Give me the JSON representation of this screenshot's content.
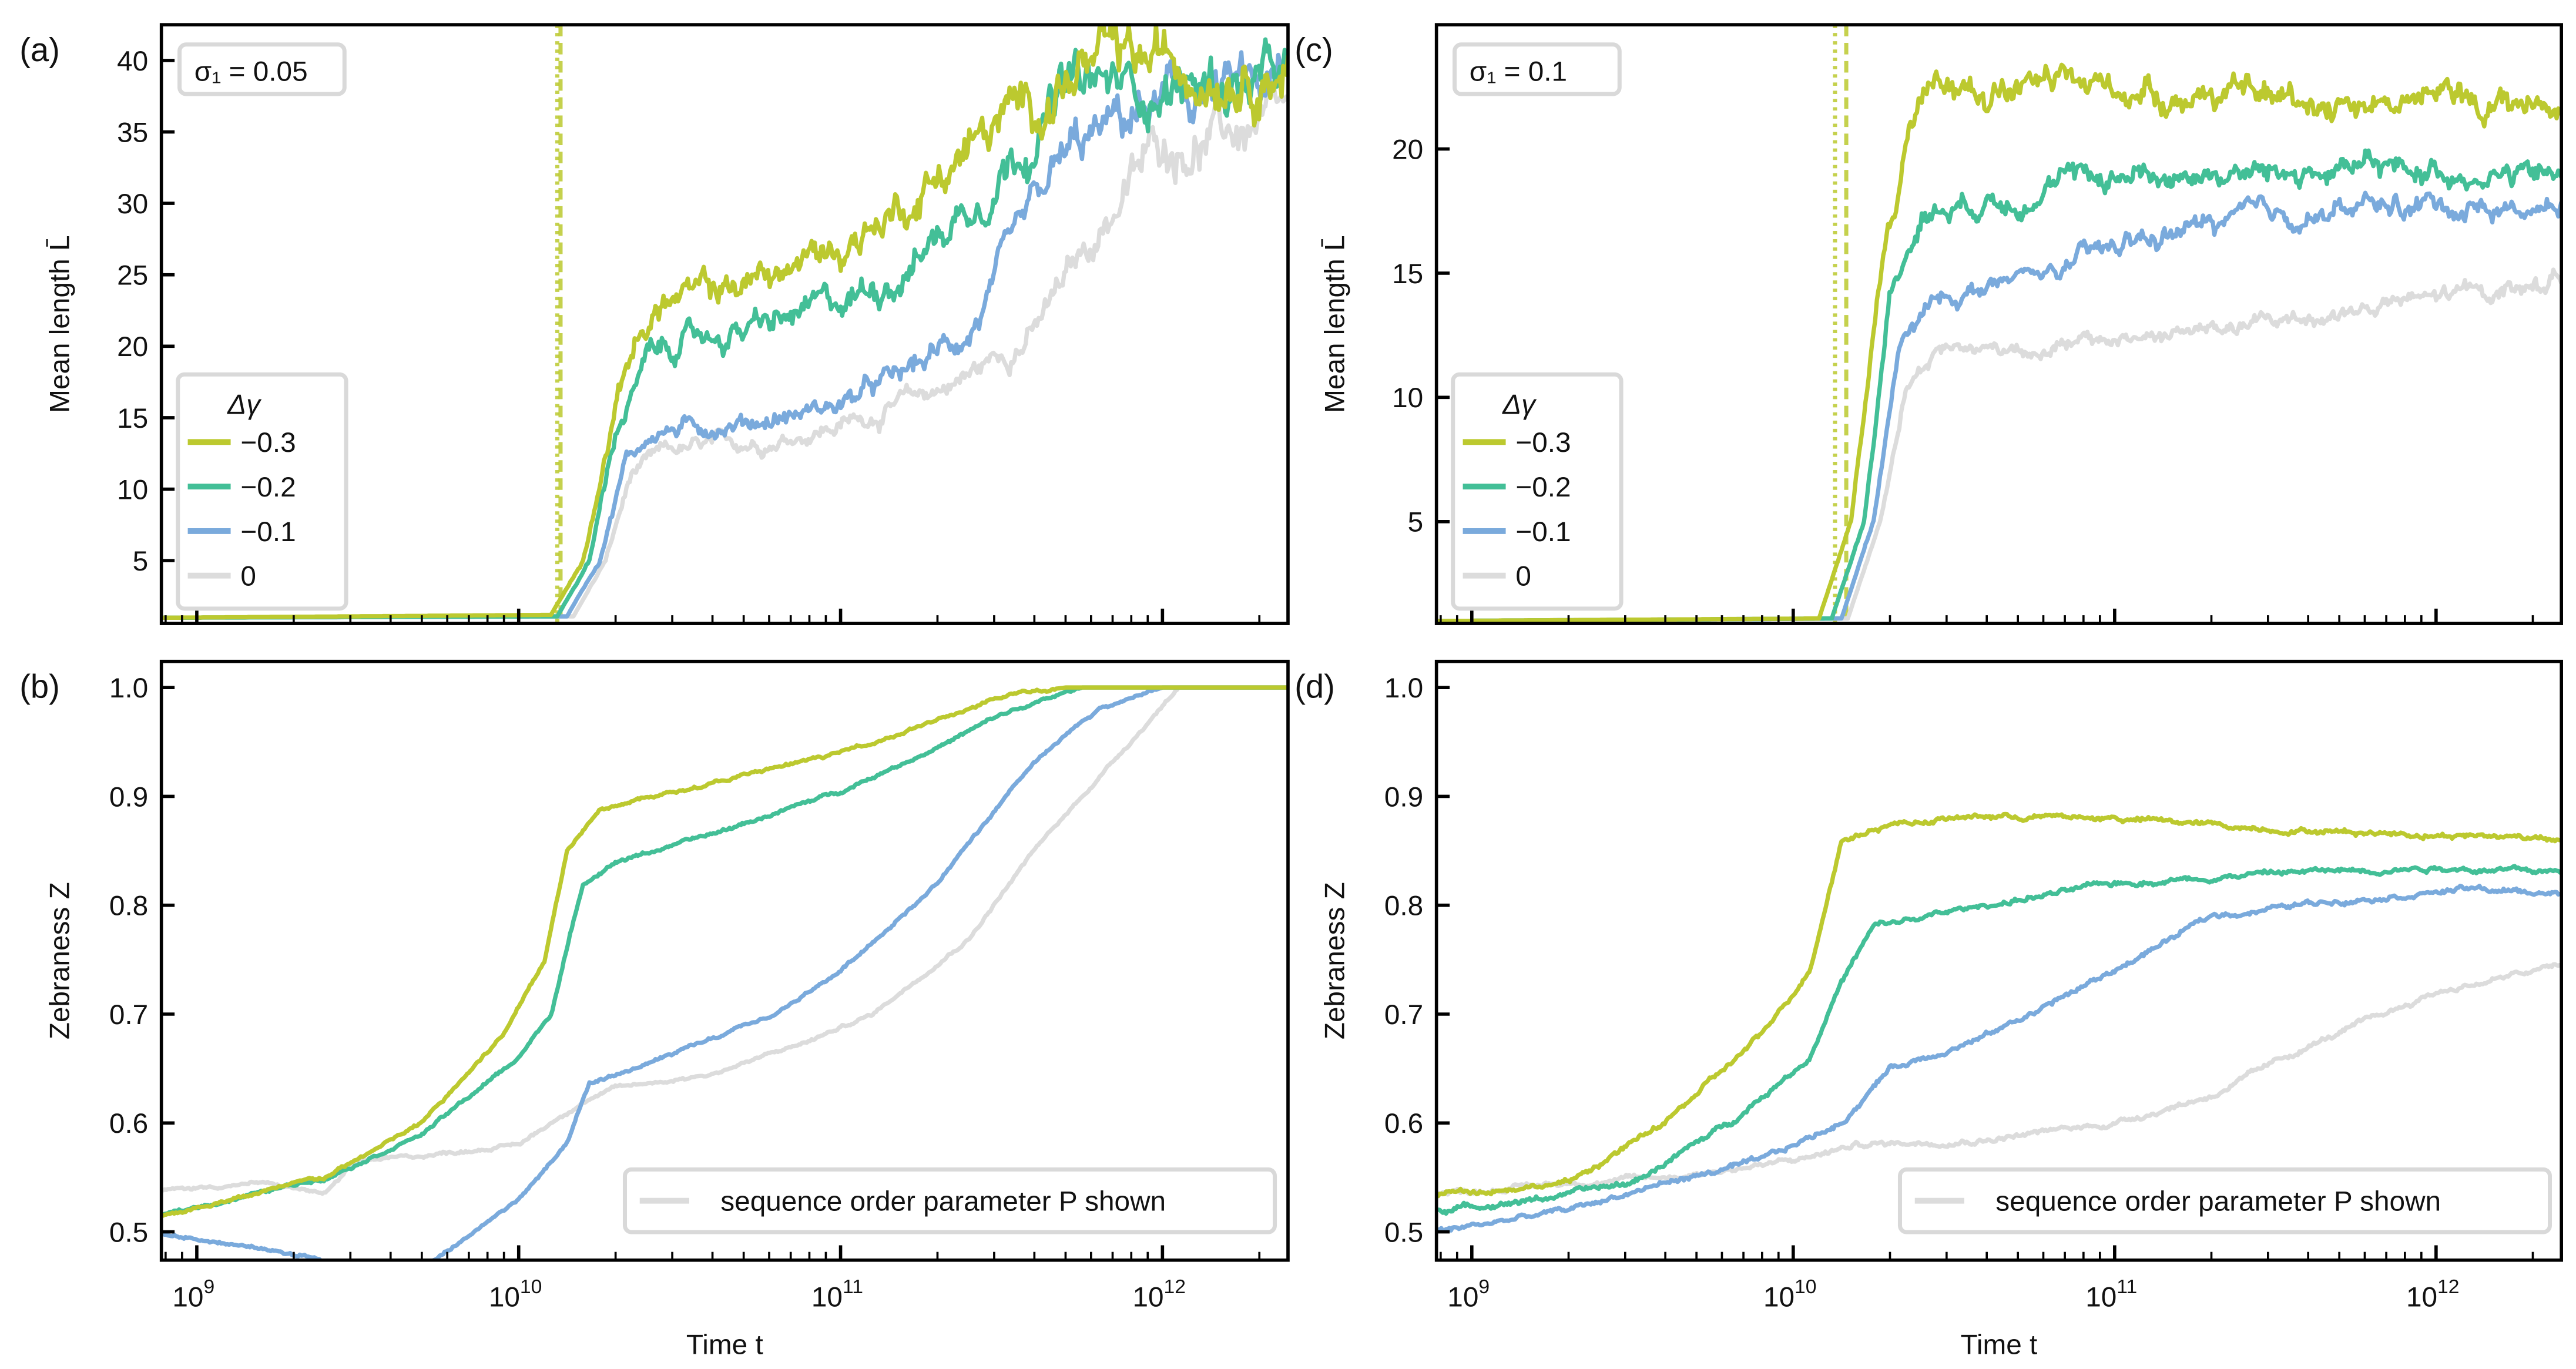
{
  "colors": {
    "-0.3": "#bcc92f",
    "-0.2": "#43bf97",
    "-0.1": "#7aaadc",
    "0": "#dcdcdc",
    "frame": "#000000",
    "legend_border": "#d9d9d9"
  },
  "chart_data": [
    {
      "id": "a",
      "panel_label": "(a)",
      "type": "line",
      "xscale": "log",
      "xlim_log10": [
        8.89,
        12.39
      ],
      "ylim": [
        0.6,
        42.5
      ],
      "ylabel": "Mean length   L̄",
      "xlabel": "",
      "yticks": [
        5,
        10,
        15,
        20,
        25,
        30,
        35,
        40
      ],
      "xticks_log10": [
        9,
        10,
        11,
        12
      ],
      "show_xticklabels": false,
      "annotation": "σ₁ = 0.05",
      "vlines_log10": [
        {
          "x": 10.12,
          "style": "dotted",
          "series": "-0.3"
        },
        {
          "x": 10.13,
          "style": "dashed",
          "series": "-0.3"
        }
      ],
      "legend": {
        "title": "Δγ",
        "placement": "center-left",
        "entries": [
          "−0.3",
          "−0.2",
          "−0.1",
          "0"
        ]
      },
      "noise": 1.0,
      "series": [
        {
          "name": "−0.3",
          "key": "-0.3",
          "points": [
            [
              8.89,
              1
            ],
            [
              10.1,
              1.2
            ],
            [
              10.2,
              5
            ],
            [
              10.28,
              14
            ],
            [
              10.35,
              20
            ],
            [
              10.45,
              23
            ],
            [
              10.8,
              25
            ],
            [
              11.0,
              27
            ],
            [
              11.2,
              30
            ],
            [
              11.4,
              34
            ],
            [
              11.6,
              37
            ],
            [
              11.75,
              39.5
            ],
            [
              12.39,
              40
            ]
          ]
        },
        {
          "name": "−0.2",
          "key": "-0.2",
          "points": [
            [
              8.89,
              1
            ],
            [
              10.12,
              1.1
            ],
            [
              10.22,
              5
            ],
            [
              10.3,
              14
            ],
            [
              10.4,
              19
            ],
            [
              10.5,
              20.3
            ],
            [
              10.8,
              21.5
            ],
            [
              11.0,
              23
            ],
            [
              11.2,
              25.5
            ],
            [
              11.4,
              30
            ],
            [
              11.55,
              34
            ],
            [
              11.7,
              38
            ],
            [
              12.39,
              38.5
            ]
          ]
        },
        {
          "name": "−0.1",
          "key": "-0.1",
          "points": [
            [
              8.89,
              1
            ],
            [
              10.15,
              1.1
            ],
            [
              10.25,
              5
            ],
            [
              10.33,
              12
            ],
            [
              10.42,
              14
            ],
            [
              10.8,
              15
            ],
            [
              11.0,
              16
            ],
            [
              11.2,
              18
            ],
            [
              11.4,
              21
            ],
            [
              11.55,
              27
            ],
            [
              11.7,
              33
            ],
            [
              11.9,
              36
            ],
            [
              12.1,
              37.5
            ],
            [
              12.39,
              38
            ]
          ]
        },
        {
          "name": "0",
          "key": "0",
          "points": [
            [
              8.89,
              1
            ],
            [
              10.17,
              1.1
            ],
            [
              10.27,
              5
            ],
            [
              10.35,
              11
            ],
            [
              10.45,
              12.5
            ],
            [
              10.8,
              13.5
            ],
            [
              11.0,
              14.5
            ],
            [
              11.2,
              16
            ],
            [
              11.4,
              18
            ],
            [
              11.6,
              21
            ],
            [
              11.8,
              28
            ],
            [
              11.98,
              34
            ],
            [
              12.39,
              35.5
            ]
          ]
        }
      ]
    },
    {
      "id": "b",
      "panel_label": "(b)",
      "type": "line",
      "xscale": "log",
      "xlim_log10": [
        8.89,
        12.39
      ],
      "ylim": [
        0.474,
        1.024
      ],
      "ylabel": "Zebraness   Z",
      "xlabel": "Time   t",
      "yticks": [
        0.5,
        0.6,
        0.7,
        0.8,
        0.9,
        1.0
      ],
      "xticks_log10": [
        9,
        10,
        11,
        12
      ],
      "show_xticklabels": true,
      "legend": {
        "placement": "lower-right",
        "entries": [
          "sequence order parameter P shown"
        ]
      },
      "noise": 0.0015,
      "series": [
        {
          "name": "−0.3",
          "key": "-0.3",
          "points": [
            [
              8.89,
              0.515
            ],
            [
              9.4,
              0.55
            ],
            [
              9.7,
              0.6
            ],
            [
              9.95,
              0.68
            ],
            [
              10.08,
              0.75
            ],
            [
              10.15,
              0.85
            ],
            [
              10.25,
              0.89
            ],
            [
              10.5,
              0.905
            ],
            [
              11.0,
              0.94
            ],
            [
              11.3,
              0.97
            ],
            [
              11.55,
              0.995
            ],
            [
              11.7,
              1.0
            ],
            [
              12.39,
              1.0
            ]
          ]
        },
        {
          "name": "−0.2",
          "key": "-0.2",
          "points": [
            [
              8.89,
              0.515
            ],
            [
              9.4,
              0.55
            ],
            [
              9.7,
              0.59
            ],
            [
              10.0,
              0.66
            ],
            [
              10.1,
              0.7
            ],
            [
              10.2,
              0.82
            ],
            [
              10.3,
              0.84
            ],
            [
              10.6,
              0.865
            ],
            [
              11.0,
              0.905
            ],
            [
              11.3,
              0.945
            ],
            [
              11.5,
              0.975
            ],
            [
              11.75,
              1.0
            ],
            [
              12.39,
              1.0
            ]
          ]
        },
        {
          "name": "−0.1",
          "key": "-0.1",
          "points": [
            [
              8.89,
              0.498
            ],
            [
              9.2,
              0.485
            ],
            [
              9.5,
              0.47
            ],
            [
              9.7,
              0.465
            ],
            [
              10.0,
              0.53
            ],
            [
              10.15,
              0.58
            ],
            [
              10.22,
              0.635
            ],
            [
              10.5,
              0.665
            ],
            [
              10.8,
              0.7
            ],
            [
              11.0,
              0.74
            ],
            [
              11.3,
              0.82
            ],
            [
              11.6,
              0.93
            ],
            [
              11.8,
              0.98
            ],
            [
              12.0,
              1.0
            ],
            [
              12.39,
              1.0
            ]
          ]
        },
        {
          "name": "0",
          "key": "0",
          "points": [
            [
              8.89,
              0.538
            ],
            [
              9.2,
              0.545
            ],
            [
              9.4,
              0.535
            ],
            [
              9.5,
              0.565
            ],
            [
              9.7,
              0.57
            ],
            [
              10.0,
              0.58
            ],
            [
              10.2,
              0.62
            ],
            [
              10.3,
              0.632
            ],
            [
              10.6,
              0.645
            ],
            [
              10.9,
              0.675
            ],
            [
              11.1,
              0.7
            ],
            [
              11.4,
              0.77
            ],
            [
              11.6,
              0.85
            ],
            [
              11.9,
              0.95
            ],
            [
              12.05,
              1.0
            ],
            [
              12.39,
              1.0
            ]
          ]
        }
      ]
    },
    {
      "id": "c",
      "panel_label": "(c)",
      "type": "line",
      "xscale": "log",
      "xlim_log10": [
        8.89,
        12.39
      ],
      "ylim": [
        0.9,
        25
      ],
      "ylabel": "Mean length   L̄",
      "xlabel": "",
      "yticks": [
        5,
        10,
        15,
        20
      ],
      "xticks_log10": [
        9,
        10,
        11,
        12
      ],
      "show_xticklabels": false,
      "annotation": "σ₁ = 0.1",
      "vlines_log10": [
        {
          "x": 10.13,
          "style": "dotted",
          "series": "-0.3"
        },
        {
          "x": 10.165,
          "style": "dashed",
          "series": "-0.3"
        }
      ],
      "legend": {
        "title": "Δγ",
        "placement": "center-left",
        "entries": [
          "−0.3",
          "−0.2",
          "−0.1",
          "0"
        ]
      },
      "noise": 0.6,
      "series": [
        {
          "name": "−0.3",
          "key": "-0.3",
          "points": [
            [
              8.89,
              1
            ],
            [
              10.08,
              1.1
            ],
            [
              10.18,
              5
            ],
            [
              10.27,
              15
            ],
            [
              10.37,
              21
            ],
            [
              10.5,
              22.5
            ],
            [
              11.0,
              22.5
            ],
            [
              11.5,
              22
            ],
            [
              12.0,
              22
            ],
            [
              12.39,
              21.8
            ]
          ]
        },
        {
          "name": "−0.2",
          "key": "-0.2",
          "points": [
            [
              8.89,
              1
            ],
            [
              10.12,
              1.1
            ],
            [
              10.22,
              5
            ],
            [
              10.3,
              14
            ],
            [
              10.4,
              17.5
            ],
            [
              10.6,
              18
            ],
            [
              11.0,
              19
            ],
            [
              11.5,
              19
            ],
            [
              12.0,
              19.2
            ],
            [
              12.39,
              18.8
            ]
          ]
        },
        {
          "name": "−0.1",
          "key": "-0.1",
          "points": [
            [
              8.89,
              1
            ],
            [
              10.15,
              1.1
            ],
            [
              10.25,
              5
            ],
            [
              10.33,
              12
            ],
            [
              10.45,
              14
            ],
            [
              10.8,
              15
            ],
            [
              11.0,
              16
            ],
            [
              11.3,
              17
            ],
            [
              11.7,
              17.5
            ],
            [
              12.0,
              17.8
            ],
            [
              12.39,
              17.5
            ]
          ]
        },
        {
          "name": "0",
          "key": "0",
          "points": [
            [
              8.89,
              1
            ],
            [
              10.17,
              1.1
            ],
            [
              10.27,
              5
            ],
            [
              10.35,
              10.5
            ],
            [
              10.45,
              12
            ],
            [
              10.8,
              12
            ],
            [
              11.0,
              12.3
            ],
            [
              11.5,
              13
            ],
            [
              12.0,
              14
            ],
            [
              12.39,
              14.7
            ]
          ]
        }
      ]
    },
    {
      "id": "d",
      "panel_label": "(d)",
      "type": "line",
      "xscale": "log",
      "xlim_log10": [
        8.89,
        12.39
      ],
      "ylim": [
        0.474,
        1.024
      ],
      "ylabel": "Zebraness   Z",
      "xlabel": "Time   t",
      "yticks": [
        0.5,
        0.6,
        0.7,
        0.8,
        0.9,
        1.0
      ],
      "xticks_log10": [
        9,
        10,
        11,
        12
      ],
      "show_xticklabels": true,
      "legend": {
        "placement": "lower-right",
        "entries": [
          "sequence order parameter P shown"
        ]
      },
      "noise": 0.0025,
      "series": [
        {
          "name": "−0.3",
          "key": "-0.3",
          "points": [
            [
              8.89,
              0.535
            ],
            [
              9.3,
              0.545
            ],
            [
              9.6,
              0.6
            ],
            [
              9.9,
              0.68
            ],
            [
              10.05,
              0.74
            ],
            [
              10.15,
              0.86
            ],
            [
              10.3,
              0.875
            ],
            [
              10.6,
              0.882
            ],
            [
              11.0,
              0.88
            ],
            [
              11.5,
              0.87
            ],
            [
              12.0,
              0.865
            ],
            [
              12.39,
              0.862
            ]
          ]
        },
        {
          "name": "−0.2",
          "key": "-0.2",
          "points": [
            [
              8.89,
              0.52
            ],
            [
              9.2,
              0.53
            ],
            [
              9.5,
              0.545
            ],
            [
              9.8,
              0.6
            ],
            [
              10.05,
              0.66
            ],
            [
              10.15,
              0.73
            ],
            [
              10.25,
              0.78
            ],
            [
              10.6,
              0.8
            ],
            [
              11.0,
              0.82
            ],
            [
              11.5,
              0.83
            ],
            [
              12.0,
              0.835
            ],
            [
              12.39,
              0.83
            ]
          ]
        },
        {
          "name": "−0.1",
          "key": "-0.1",
          "points": [
            [
              8.89,
              0.5
            ],
            [
              9.3,
              0.52
            ],
            [
              9.6,
              0.545
            ],
            [
              9.9,
              0.565
            ],
            [
              10.15,
              0.6
            ],
            [
              10.3,
              0.65
            ],
            [
              10.6,
              0.68
            ],
            [
              11.0,
              0.74
            ],
            [
              11.3,
              0.79
            ],
            [
              11.7,
              0.805
            ],
            [
              12.1,
              0.815
            ],
            [
              12.39,
              0.81
            ]
          ]
        },
        {
          "name": "0",
          "key": "0",
          "points": [
            [
              8.89,
              0.535
            ],
            [
              9.3,
              0.545
            ],
            [
              9.6,
              0.55
            ],
            [
              10.0,
              0.565
            ],
            [
              10.2,
              0.58
            ],
            [
              10.6,
              0.585
            ],
            [
              11.0,
              0.6
            ],
            [
              11.3,
              0.625
            ],
            [
              11.6,
              0.67
            ],
            [
              12.0,
              0.72
            ],
            [
              12.39,
              0.745
            ]
          ]
        }
      ]
    }
  ]
}
